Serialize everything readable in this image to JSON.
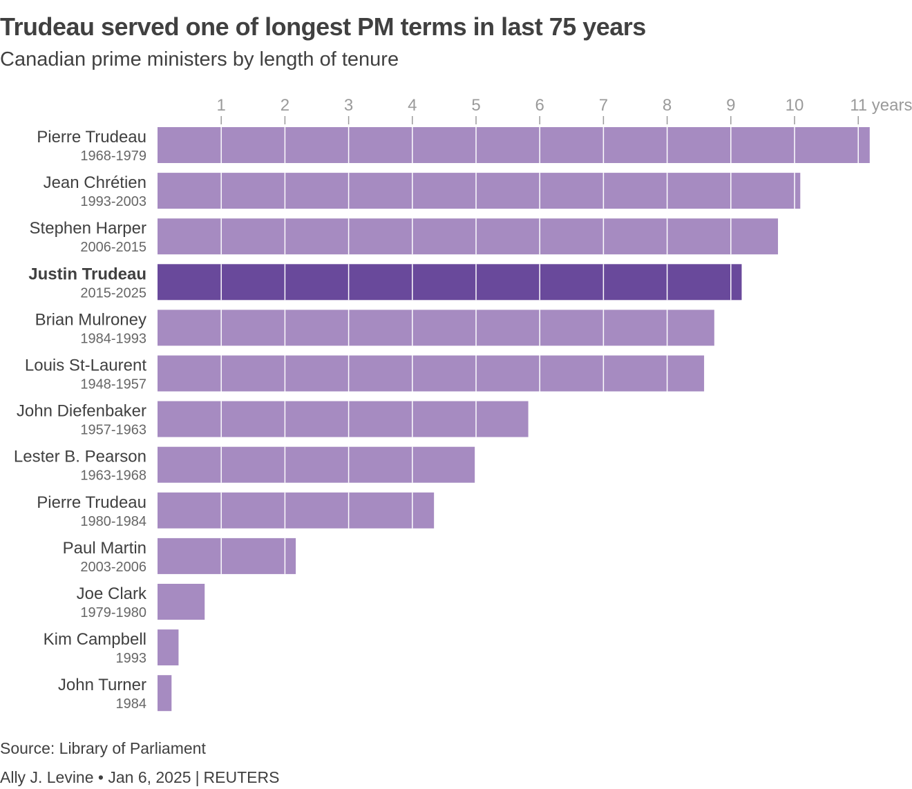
{
  "title": "Trudeau served one of longest PM terms in last 75 years",
  "subtitle": "Canadian prime ministers by length of tenure",
  "source": "Source: Library of Parliament",
  "credit": {
    "author_date": "Ally J. Levine • Jan 6, 2025",
    "separator": "|",
    "agency": "REUTERS"
  },
  "colors": {
    "bar": "#a68bc1",
    "highlight": "#69499b",
    "gridline": "#ffffff",
    "tick": "#9a9a9a",
    "text": "#404040",
    "subtext": "#666666"
  },
  "chart_data": {
    "type": "bar",
    "orientation": "horizontal",
    "title": "Trudeau served one of longest PM terms in last 75 years",
    "subtitle": "Canadian prime ministers by length of tenure",
    "xlabel": "years",
    "xlim": [
      0,
      11
    ],
    "x_ticks": [
      "1",
      "2",
      "3",
      "4",
      "5",
      "6",
      "7",
      "8",
      "9",
      "10",
      "11 years"
    ],
    "grid": true,
    "categories": [
      {
        "name": "Pierre Trudeau",
        "years": "1968-1979"
      },
      {
        "name": "Jean Chrétien",
        "years": "1993-2003"
      },
      {
        "name": "Stephen Harper",
        "years": "2006-2015"
      },
      {
        "name": "Justin Trudeau",
        "years": "2015-2025",
        "highlight": true
      },
      {
        "name": "Brian Mulroney",
        "years": "1984-1993"
      },
      {
        "name": "Louis St-Laurent",
        "years": "1948-1957"
      },
      {
        "name": "John Diefenbaker",
        "years": "1957-1963"
      },
      {
        "name": "Lester B. Pearson",
        "years": "1963-1968"
      },
      {
        "name": "Pierre Trudeau",
        "years": "1980-1984"
      },
      {
        "name": "Paul Martin",
        "years": "2003-2006"
      },
      {
        "name": "Joe Clark",
        "years": "1979-1980"
      },
      {
        "name": "Kim Campbell",
        "years": "1993"
      },
      {
        "name": "John Turner",
        "years": "1984"
      }
    ],
    "values": [
      11.18,
      10.09,
      9.74,
      9.17,
      8.74,
      8.58,
      5.82,
      4.98,
      4.34,
      2.17,
      0.74,
      0.33,
      0.22
    ]
  }
}
